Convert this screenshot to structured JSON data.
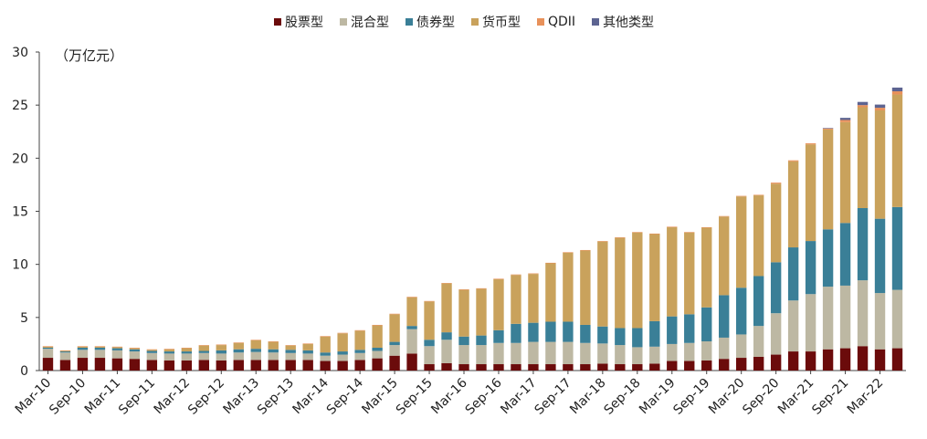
{
  "chart_data": {
    "type": "bar",
    "stacked": true,
    "unit_label": "（万亿元）",
    "ylim": [
      0,
      30
    ],
    "yticks": [
      "0",
      "5",
      "10",
      "15",
      "20",
      "25",
      "30"
    ],
    "xtick_labels": [
      "Mar-10",
      "Sep-10",
      "Mar-11",
      "Sep-11",
      "Mar-12",
      "Sep-12",
      "Mar-13",
      "Sep-13",
      "Mar-14",
      "Sep-14",
      "Mar-15",
      "Sep-15",
      "Mar-16",
      "Sep-16",
      "Mar-17",
      "Sep-17",
      "Mar-18",
      "Sep-18",
      "Mar-19",
      "Sep-19",
      "Mar-20",
      "Sep-20",
      "Mar-21",
      "Sep-21",
      "Mar-22"
    ],
    "categories": [
      "Mar-10",
      "Jun-10",
      "Sep-10",
      "Dec-10",
      "Mar-11",
      "Jun-11",
      "Sep-11",
      "Dec-11",
      "Mar-12",
      "Jun-12",
      "Sep-12",
      "Dec-12",
      "Mar-13",
      "Jun-13",
      "Sep-13",
      "Dec-13",
      "Mar-14",
      "Jun-14",
      "Sep-14",
      "Dec-14",
      "Mar-15",
      "Jun-15",
      "Sep-15",
      "Dec-15",
      "Mar-16",
      "Jun-16",
      "Sep-16",
      "Dec-16",
      "Mar-17",
      "Jun-17",
      "Sep-17",
      "Dec-17",
      "Mar-18",
      "Jun-18",
      "Sep-18",
      "Dec-18",
      "Mar-19",
      "Jun-19",
      "Sep-19",
      "Dec-19",
      "Mar-20",
      "Jun-20",
      "Sep-20",
      "Dec-20",
      "Mar-21",
      "Jun-21",
      "Sep-21",
      "Dec-21",
      "Mar-22",
      "Jun-22"
    ],
    "series": [
      {
        "name": "股票型",
        "color": "#6b0b0b",
        "values": [
          1.2,
          1.0,
          1.2,
          1.2,
          1.15,
          1.1,
          1.0,
          0.95,
          0.95,
          1.0,
          0.95,
          1.0,
          1.0,
          1.0,
          1.0,
          1.0,
          0.9,
          0.9,
          1.0,
          1.15,
          1.4,
          1.6,
          0.6,
          0.7,
          0.6,
          0.6,
          0.6,
          0.6,
          0.6,
          0.6,
          0.6,
          0.6,
          0.65,
          0.6,
          0.6,
          0.65,
          0.9,
          0.9,
          0.95,
          1.1,
          1.2,
          1.3,
          1.5,
          1.8,
          1.8,
          2.0,
          2.1,
          2.3,
          2.0,
          2.1
        ]
      },
      {
        "name": "混合型",
        "color": "#bdb8a3",
        "values": [
          0.85,
          0.7,
          0.75,
          0.75,
          0.75,
          0.7,
          0.65,
          0.65,
          0.65,
          0.65,
          0.65,
          0.7,
          0.75,
          0.7,
          0.65,
          0.6,
          0.5,
          0.6,
          0.65,
          0.7,
          1.0,
          2.3,
          1.7,
          2.2,
          1.8,
          1.8,
          2.0,
          2.0,
          2.1,
          2.1,
          2.1,
          2.0,
          1.9,
          1.8,
          1.6,
          1.6,
          1.6,
          1.7,
          1.8,
          2.0,
          2.2,
          2.9,
          3.9,
          4.8,
          5.4,
          5.9,
          5.9,
          6.2,
          5.3,
          5.5
        ]
      },
      {
        "name": "债券型",
        "color": "#3a7f97",
        "values": [
          0.1,
          0.1,
          0.2,
          0.2,
          0.2,
          0.2,
          0.2,
          0.2,
          0.2,
          0.2,
          0.3,
          0.3,
          0.3,
          0.3,
          0.3,
          0.3,
          0.3,
          0.3,
          0.3,
          0.3,
          0.3,
          0.3,
          0.6,
          0.7,
          0.8,
          0.9,
          1.2,
          1.8,
          1.8,
          1.9,
          1.9,
          1.7,
          1.6,
          1.6,
          1.8,
          2.4,
          2.6,
          2.7,
          3.2,
          4.0,
          4.4,
          4.7,
          4.8,
          5.0,
          5.0,
          5.4,
          5.9,
          6.8,
          7.0,
          7.8
        ]
      },
      {
        "name": "货币型",
        "color": "#c9a25c",
        "values": [
          0.1,
          0.05,
          0.1,
          0.1,
          0.1,
          0.1,
          0.1,
          0.2,
          0.3,
          0.5,
          0.5,
          0.6,
          0.8,
          0.7,
          0.4,
          0.6,
          1.5,
          1.7,
          1.8,
          2.1,
          2.6,
          2.7,
          3.6,
          4.6,
          4.4,
          4.4,
          4.8,
          4.6,
          4.6,
          5.5,
          6.5,
          7.0,
          8.0,
          8.5,
          9.0,
          8.2,
          8.4,
          7.7,
          7.5,
          7.4,
          8.6,
          7.6,
          7.4,
          8.1,
          9.1,
          9.4,
          9.5,
          9.5,
          10.2,
          10.6
        ]
      },
      {
        "name": "QDII",
        "color": "#e8915a",
        "values": [
          0.05,
          0.05,
          0.05,
          0.05,
          0.05,
          0.05,
          0.05,
          0.05,
          0.05,
          0.05,
          0.05,
          0.05,
          0.05,
          0.05,
          0.05,
          0.05,
          0.05,
          0.05,
          0.05,
          0.05,
          0.05,
          0.05,
          0.05,
          0.05,
          0.05,
          0.05,
          0.05,
          0.05,
          0.05,
          0.05,
          0.05,
          0.05,
          0.05,
          0.05,
          0.05,
          0.05,
          0.05,
          0.05,
          0.05,
          0.05,
          0.05,
          0.05,
          0.1,
          0.1,
          0.1,
          0.1,
          0.2,
          0.2,
          0.25,
          0.3
        ]
      },
      {
        "name": "其他类型",
        "color": "#5d6491",
        "values": [
          0,
          0,
          0,
          0,
          0,
          0,
          0,
          0,
          0,
          0,
          0,
          0,
          0,
          0,
          0,
          0,
          0,
          0,
          0,
          0,
          0,
          0,
          0,
          0,
          0,
          0,
          0,
          0,
          0,
          0,
          0,
          0,
          0,
          0,
          0,
          0,
          0,
          0,
          0,
          0,
          0,
          0,
          0,
          0,
          0,
          0.05,
          0.2,
          0.3,
          0.3,
          0.35
        ]
      }
    ]
  }
}
